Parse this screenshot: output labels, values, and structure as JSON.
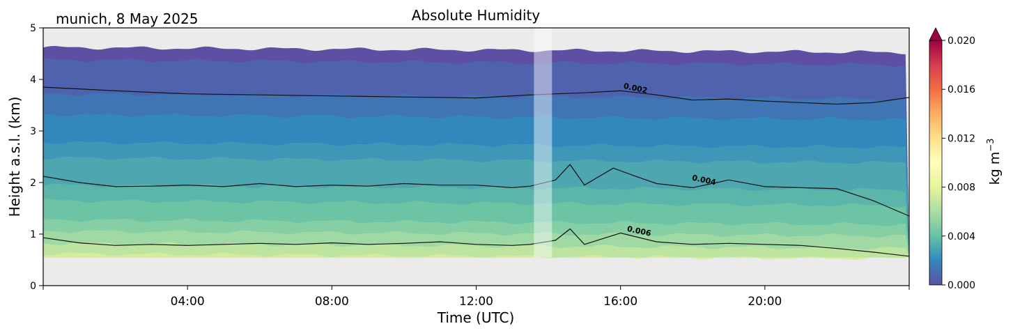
{
  "chart_data": {
    "type": "contour",
    "title": "Absolute Humidity",
    "subtitle": "munich, 8 May 2025",
    "xlabel": "Time (UTC)",
    "ylabel": "Height a.s.l. (km)",
    "xlim": [
      0,
      24
    ],
    "ylim": [
      0,
      5
    ],
    "x_ticks": [
      4,
      8,
      12,
      16,
      20
    ],
    "x_tick_labels": [
      "04:00",
      "08:00",
      "12:00",
      "16:00",
      "20:00"
    ],
    "y_ticks": [
      0,
      1,
      2,
      3,
      4,
      5
    ],
    "y_tick_labels": [
      "0",
      "1",
      "2",
      "3",
      "4",
      "5"
    ],
    "data_floor_km": 0.55,
    "gap_hours": [
      13.6,
      14.1
    ],
    "contour_levels": [
      0.002,
      0.004,
      0.006
    ],
    "contour_labels": [
      {
        "text": "0.002",
        "x": 16.4,
        "y": 3.78
      },
      {
        "text": "0.004",
        "x": 18.3,
        "y": 2.0
      },
      {
        "text": "0.006",
        "x": 16.5,
        "y": 1.01
      }
    ],
    "contour_2mgm_km": [
      {
        "t": 0,
        "h": 3.85
      },
      {
        "t": 2,
        "h": 3.78
      },
      {
        "t": 4,
        "h": 3.72
      },
      {
        "t": 6,
        "h": 3.7
      },
      {
        "t": 8,
        "h": 3.68
      },
      {
        "t": 10,
        "h": 3.66
      },
      {
        "t": 12,
        "h": 3.64
      },
      {
        "t": 13.5,
        "h": 3.7
      },
      {
        "t": 14.2,
        "h": 3.72
      },
      {
        "t": 15,
        "h": 3.74
      },
      {
        "t": 16,
        "h": 3.78
      },
      {
        "t": 17,
        "h": 3.7
      },
      {
        "t": 18,
        "h": 3.6
      },
      {
        "t": 19,
        "h": 3.62
      },
      {
        "t": 20,
        "h": 3.58
      },
      {
        "t": 21,
        "h": 3.55
      },
      {
        "t": 22,
        "h": 3.52
      },
      {
        "t": 23,
        "h": 3.55
      },
      {
        "t": 24,
        "h": 3.65
      }
    ],
    "contour_4mgm_km": [
      {
        "t": 0,
        "h": 2.12
      },
      {
        "t": 1,
        "h": 2.0
      },
      {
        "t": 2,
        "h": 1.92
      },
      {
        "t": 3,
        "h": 1.93
      },
      {
        "t": 4,
        "h": 1.95
      },
      {
        "t": 5,
        "h": 1.92
      },
      {
        "t": 6,
        "h": 1.98
      },
      {
        "t": 7,
        "h": 1.92
      },
      {
        "t": 8,
        "h": 1.95
      },
      {
        "t": 9,
        "h": 1.93
      },
      {
        "t": 10,
        "h": 1.98
      },
      {
        "t": 11,
        "h": 1.95
      },
      {
        "t": 12,
        "h": 1.95
      },
      {
        "t": 13,
        "h": 1.9
      },
      {
        "t": 13.5,
        "h": 1.93
      },
      {
        "t": 14.2,
        "h": 2.05
      },
      {
        "t": 14.6,
        "h": 2.35
      },
      {
        "t": 15,
        "h": 1.95
      },
      {
        "t": 15.8,
        "h": 2.28
      },
      {
        "t": 16.5,
        "h": 2.1
      },
      {
        "t": 17,
        "h": 1.98
      },
      {
        "t": 18,
        "h": 1.9
      },
      {
        "t": 19,
        "h": 2.05
      },
      {
        "t": 20,
        "h": 1.92
      },
      {
        "t": 21,
        "h": 1.9
      },
      {
        "t": 22,
        "h": 1.88
      },
      {
        "t": 23,
        "h": 1.65
      },
      {
        "t": 24,
        "h": 1.35
      }
    ],
    "contour_6mgm_km": [
      {
        "t": 0,
        "h": 0.93
      },
      {
        "t": 1,
        "h": 0.83
      },
      {
        "t": 2,
        "h": 0.78
      },
      {
        "t": 3,
        "h": 0.8
      },
      {
        "t": 4,
        "h": 0.78
      },
      {
        "t": 5,
        "h": 0.8
      },
      {
        "t": 6,
        "h": 0.82
      },
      {
        "t": 7,
        "h": 0.8
      },
      {
        "t": 8,
        "h": 0.83
      },
      {
        "t": 9,
        "h": 0.8
      },
      {
        "t": 10,
        "h": 0.82
      },
      {
        "t": 11,
        "h": 0.85
      },
      {
        "t": 12,
        "h": 0.8
      },
      {
        "t": 13,
        "h": 0.78
      },
      {
        "t": 13.5,
        "h": 0.8
      },
      {
        "t": 14.2,
        "h": 0.88
      },
      {
        "t": 14.6,
        "h": 1.1
      },
      {
        "t": 15,
        "h": 0.8
      },
      {
        "t": 16,
        "h": 1.02
      },
      {
        "t": 17,
        "h": 0.85
      },
      {
        "t": 18,
        "h": 0.8
      },
      {
        "t": 19,
        "h": 0.82
      },
      {
        "t": 20,
        "h": 0.8
      },
      {
        "t": 21,
        "h": 0.78
      },
      {
        "t": 22,
        "h": 0.72
      },
      {
        "t": 23,
        "h": 0.65
      },
      {
        "t": 24,
        "h": 0.57
      }
    ],
    "filled_band_tops_km": [
      4.62,
      4.38,
      3.72,
      3.32,
      2.78,
      2.48,
      1.95,
      1.65,
      1.28,
      1.06,
      0.82,
      0.62
    ],
    "filled_band_colors": [
      "#5e4fa2",
      "#4f62ad",
      "#3f75b5",
      "#3288bd",
      "#3f97b7",
      "#4ea6b1",
      "#5cb5a9",
      "#6cc4a4",
      "#86cea4",
      "#a1d9a4",
      "#bee5a0",
      "#d3ed9b"
    ],
    "no_data_color": "#ebebeb",
    "colorbar": {
      "label": "kg m",
      "label_superscript": "−3",
      "ticks": [
        0.0,
        0.004,
        0.008,
        0.012,
        0.016,
        0.02
      ],
      "tick_labels": [
        "0.000",
        "0.004",
        "0.008",
        "0.012",
        "0.016",
        "0.020"
      ],
      "range": [
        0.0,
        0.02
      ],
      "extend": "max",
      "colors": [
        "#5e4fa2",
        "#3288bd",
        "#66c2a5",
        "#abdda4",
        "#e6f598",
        "#ffffbf",
        "#fee08b",
        "#fdae61",
        "#f46d43",
        "#d53e4f",
        "#9e0142"
      ]
    }
  }
}
